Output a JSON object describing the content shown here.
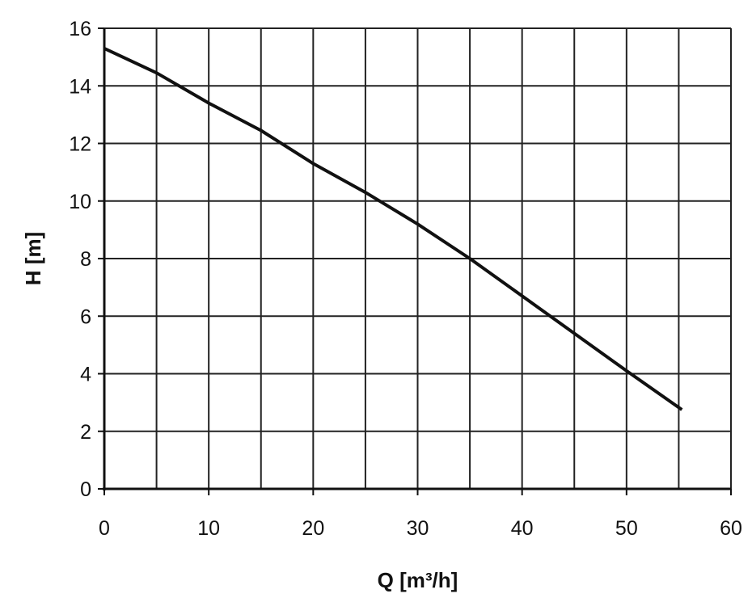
{
  "chart_data": {
    "type": "line",
    "title": "",
    "xlabel": "Q [m³/h]",
    "ylabel": "H [m]",
    "xlim": [
      0,
      60
    ],
    "ylim": [
      0,
      16
    ],
    "x_ticks": [
      0,
      10,
      20,
      30,
      40,
      50,
      60
    ],
    "y_ticks": [
      0,
      2,
      4,
      6,
      8,
      10,
      12,
      14,
      16
    ],
    "x_grid_step": 5,
    "y_grid_step": 2,
    "grid": true,
    "legend": "none",
    "series": [
      {
        "color": "#111111",
        "x": [
          0,
          5,
          10,
          15,
          20,
          25,
          30,
          35,
          40,
          45,
          50,
          55.3
        ],
        "y": [
          15.3,
          14.45,
          13.4,
          12.45,
          11.3,
          10.3,
          9.2,
          8.0,
          6.7,
          5.4,
          4.1,
          2.75
        ]
      }
    ]
  }
}
